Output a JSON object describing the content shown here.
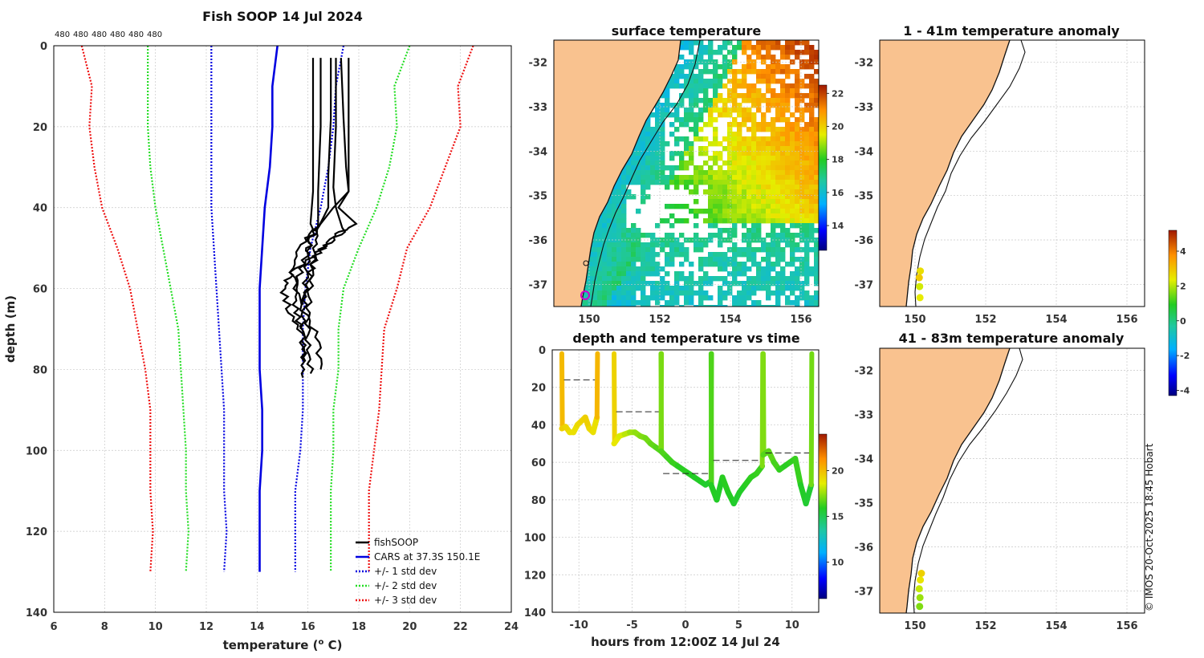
{
  "figure": {
    "copyright": "© IMOS 20-Oct-2025 18:45 Hobart"
  },
  "chart_data": [
    {
      "type": "line",
      "id": "profile",
      "title": "Fish SOOP 14 Jul 2024",
      "xlabel": "temperature (",
      "xlabel_sup": "o",
      "xlabel_tail": " C)",
      "ylabel": "depth (m)",
      "xlim": [
        6,
        24
      ],
      "ylim": [
        0,
        140
      ],
      "xticks": [
        6,
        8,
        10,
        12,
        14,
        16,
        18,
        20,
        22,
        24
      ],
      "yticks": [
        0,
        20,
        40,
        60,
        80,
        100,
        120,
        140
      ],
      "top_labels": [
        "480",
        "480",
        "480",
        "480",
        "480",
        "480"
      ],
      "legend": [
        "fishSOOP",
        "CARS at 37.3S 150.1E",
        "+/- 1 std dev",
        "+/- 2 std dev",
        "+/- 3 std dev"
      ],
      "colors": {
        "fish": "#000000",
        "cars": "#0000e0",
        "sd1": "#0000e0",
        "sd2": "#22dd22",
        "sd3": "#ee1111"
      },
      "depth": [
        0,
        10,
        20,
        30,
        40,
        50,
        60,
        70,
        80,
        90,
        100,
        110,
        120,
        130
      ],
      "series": [
        {
          "name": "CARS at 37.3S 150.1E",
          "values": [
            14.8,
            14.6,
            14.6,
            14.5,
            14.3,
            14.2,
            14.1,
            14.1,
            14.1,
            14.2,
            14.2,
            14.1,
            14.1,
            14.1
          ]
        },
        {
          "name": "-1 std dev",
          "values": [
            12.2,
            12.2,
            12.2,
            12.2,
            12.2,
            12.3,
            12.4,
            12.5,
            12.6,
            12.7,
            12.7,
            12.7,
            12.8,
            12.7
          ]
        },
        {
          "name": "+1 std dev",
          "values": [
            17.4,
            17.1,
            17.0,
            16.8,
            16.5,
            16.1,
            15.9,
            15.8,
            15.8,
            15.8,
            15.7,
            15.5,
            15.5,
            15.5
          ]
        },
        {
          "name": "-2 std dev",
          "values": [
            9.7,
            9.7,
            9.7,
            9.8,
            10.0,
            10.3,
            10.6,
            10.9,
            11.0,
            11.1,
            11.2,
            11.2,
            11.3,
            11.2
          ]
        },
        {
          "name": "+2 std dev",
          "values": [
            20.0,
            19.4,
            19.5,
            19.2,
            18.7,
            18.0,
            17.4,
            17.2,
            17.2,
            17.0,
            17.0,
            16.9,
            16.9,
            16.9
          ]
        },
        {
          "name": "-3 std dev",
          "values": [
            7.1,
            7.5,
            7.4,
            7.6,
            7.9,
            8.5,
            9.0,
            9.3,
            9.6,
            9.8,
            9.8,
            9.8,
            9.9,
            9.8
          ]
        },
        {
          "name": "+3 std dev",
          "values": [
            22.5,
            21.9,
            22.0,
            21.4,
            20.8,
            19.9,
            19.5,
            19.0,
            18.9,
            18.8,
            18.6,
            18.4,
            18.4,
            18.4
          ]
        }
      ],
      "fish_casts": [
        {
          "depth": [
            3,
            20,
            36,
            44,
            52,
            60,
            68,
            76,
            82
          ],
          "values": [
            16.2,
            16.2,
            16.2,
            16.1,
            16.0,
            15.9,
            15.8,
            15.8,
            15.8
          ]
        },
        {
          "depth": [
            3,
            20,
            36,
            44,
            50,
            58,
            66,
            74,
            81
          ],
          "values": [
            16.5,
            16.5,
            16.4,
            16.4,
            16.3,
            16.1,
            16.0,
            16.0,
            16.1
          ]
        },
        {
          "depth": [
            3,
            18,
            32,
            40,
            45,
            50,
            56,
            64,
            72,
            80
          ],
          "values": [
            16.9,
            16.9,
            16.8,
            16.8,
            16.4,
            15.6,
            15.4,
            15.7,
            16.4,
            16.5
          ]
        },
        {
          "depth": [
            3,
            20,
            35,
            40,
            46,
            50,
            56,
            60,
            66,
            72,
            78
          ],
          "values": [
            17.1,
            17.1,
            17.0,
            17.1,
            17.4,
            16.6,
            15.4,
            15.0,
            15.3,
            15.8,
            15.9
          ]
        },
        {
          "depth": [
            3,
            18,
            30,
            36,
            40,
            44,
            48,
            52,
            58,
            64,
            70
          ],
          "values": [
            17.3,
            17.4,
            17.5,
            17.6,
            17.0,
            16.5,
            16.1,
            15.9,
            15.6,
            15.5,
            15.7
          ]
        },
        {
          "depth": [
            3,
            20,
            36,
            40,
            44,
            47,
            52,
            58,
            64
          ],
          "values": [
            17.6,
            17.6,
            17.6,
            17.2,
            17.9,
            17.0,
            16.3,
            16.0,
            15.8
          ]
        }
      ]
    },
    {
      "type": "heatmap",
      "id": "sst",
      "title": "surface temperature",
      "xlim": [
        149,
        156.5
      ],
      "ylim": [
        -37.5,
        -31.5
      ],
      "xticks": [
        150,
        152,
        154,
        156
      ],
      "yticks": [
        -32,
        -33,
        -34,
        -35,
        -36,
        -37
      ],
      "colorbar": {
        "min": 12.5,
        "max": 22.5,
        "ticks": [
          14,
          16,
          18,
          20,
          22
        ]
      }
    },
    {
      "type": "heatmap",
      "id": "timeseries",
      "title": "depth and temperature vs time",
      "xlabel": "hours from 12:00Z 14 Jul 24",
      "xlim": [
        -12.5,
        12.5
      ],
      "ylim": [
        0,
        140
      ],
      "xticks": [
        -10,
        -5,
        0,
        5,
        10
      ],
      "yticks": [
        0,
        20,
        40,
        60,
        80,
        100,
        120,
        140
      ],
      "colorbar": {
        "min": 6,
        "max": 24,
        "ticks": [
          10,
          15,
          20
        ]
      },
      "casts": [
        {
          "t0": -11.6,
          "t1": -8.3,
          "bottom": [
            42,
            41,
            44,
            44,
            40,
            38,
            36,
            42,
            44,
            36
          ],
          "temp": [
            19.5,
            19.3,
            19.0,
            19.0,
            19.2,
            19.4,
            19.5,
            19.2,
            19.0,
            19.4
          ],
          "mean_depth": 16
        },
        {
          "t0": -6.7,
          "t1": -2.3,
          "bottom": [
            50,
            46,
            45,
            44,
            44,
            46,
            47,
            50,
            52,
            54
          ],
          "temp": [
            18.8,
            18.4,
            18.0,
            17.6,
            17.4,
            17.2,
            17.0,
            16.8,
            16.6,
            16.5
          ],
          "mean_depth": 33
        },
        {
          "t0": -2.3,
          "t1": 2.4,
          "bottom": [
            54,
            57,
            60,
            62,
            64,
            66,
            68,
            70,
            72,
            70
          ],
          "temp": [
            16.5,
            16.3,
            16.2,
            16.0,
            16.0,
            15.9,
            15.8,
            15.8,
            15.7,
            15.8
          ],
          "mean_depth": 66
        },
        {
          "t0": 2.4,
          "t1": 7.2,
          "bottom": [
            72,
            80,
            68,
            76,
            82,
            76,
            72,
            68,
            66,
            62
          ],
          "temp": [
            15.9,
            15.8,
            16.0,
            15.9,
            15.7,
            15.8,
            16.0,
            16.1,
            16.2,
            16.4
          ],
          "mean_depth": 59
        },
        {
          "t0": 7.3,
          "t1": 11.8,
          "bottom": [
            56,
            54,
            60,
            64,
            62,
            60,
            58,
            72,
            82,
            72
          ],
          "temp": [
            16.6,
            16.7,
            16.4,
            16.1,
            16.0,
            16.1,
            16.2,
            15.8,
            15.6,
            16.2
          ],
          "mean_depth": 55
        }
      ]
    },
    {
      "type": "scatter",
      "id": "anom_shallow",
      "title": "1 - 41m temperature anomaly",
      "xlim": [
        149,
        156.5
      ],
      "ylim": [
        -37.5,
        -31.5
      ],
      "xticks": [
        150,
        152,
        154,
        156
      ],
      "yticks": [
        -32,
        -33,
        -34,
        -35,
        -36,
        -37
      ],
      "points": [
        {
          "lon": 150.15,
          "lat": -36.7,
          "anom": 2.6
        },
        {
          "lon": 150.12,
          "lat": -36.85,
          "anom": 2.9
        },
        {
          "lon": 150.13,
          "lat": -37.05,
          "anom": 2.2
        },
        {
          "lon": 150.14,
          "lat": -37.3,
          "anom": 2.4
        }
      ]
    },
    {
      "type": "scatter",
      "id": "anom_deep",
      "title": "41 - 83m temperature anomaly",
      "xlim": [
        149,
        156.5
      ],
      "ylim": [
        -37.5,
        -31.5
      ],
      "xticks": [
        150,
        152,
        154,
        156
      ],
      "yticks": [
        -32,
        -33,
        -34,
        -35,
        -36,
        -37
      ],
      "points": [
        {
          "lon": 150.18,
          "lat": -36.6,
          "anom": 2.8
        },
        {
          "lon": 150.15,
          "lat": -36.75,
          "anom": 2.5
        },
        {
          "lon": 150.12,
          "lat": -36.95,
          "anom": 2.1
        },
        {
          "lon": 150.14,
          "lat": -37.15,
          "anom": 1.8
        },
        {
          "lon": 150.13,
          "lat": -37.35,
          "anom": 1.6
        }
      ]
    }
  ],
  "anomaly_colorbar": {
    "min": -4.3,
    "max": 5.2,
    "ticks": [
      4,
      2,
      0,
      -2,
      -4
    ],
    "tick_labels": [
      "4",
      "2",
      "0",
      "-2",
      "-4"
    ]
  }
}
